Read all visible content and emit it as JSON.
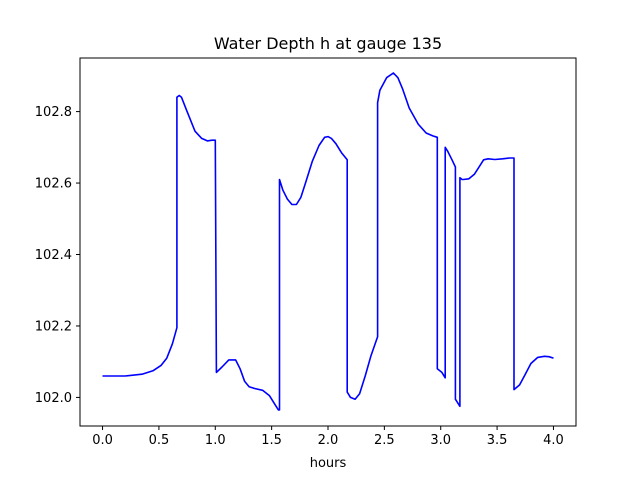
{
  "chart_data": {
    "type": "line",
    "title": "Water Depth h at gauge 135",
    "xlabel": "hours",
    "ylabel": "",
    "xlim": [
      -0.2,
      4.2
    ],
    "ylim": [
      101.92,
      102.95
    ],
    "xticks": [
      0.0,
      0.5,
      1.0,
      1.5,
      2.0,
      2.5,
      3.0,
      3.5,
      4.0
    ],
    "xtick_labels": [
      "0.0",
      "0.5",
      "1.0",
      "1.5",
      "2.0",
      "2.5",
      "3.0",
      "3.5",
      "4.0"
    ],
    "yticks": [
      102.0,
      102.2,
      102.4,
      102.6,
      102.8
    ],
    "ytick_labels": [
      "102.0",
      "102.2",
      "102.4",
      "102.6",
      "102.8"
    ],
    "grid": false,
    "color": "#0000ff",
    "series": [
      {
        "x": [
          0.0,
          0.2,
          0.35,
          0.45,
          0.52,
          0.57,
          0.62,
          0.66,
          0.66,
          0.68,
          0.7,
          0.75,
          0.82,
          0.88,
          0.93,
          0.97,
          1.0,
          1.01,
          1.01,
          1.06,
          1.12,
          1.18,
          1.22,
          1.26,
          1.3,
          1.35,
          1.42,
          1.48,
          1.53,
          1.56,
          1.57,
          1.57,
          1.6,
          1.64,
          1.68,
          1.72,
          1.76,
          1.8,
          1.86,
          1.92,
          1.97,
          2.0,
          2.03,
          2.07,
          2.12,
          2.17,
          2.17,
          2.2,
          2.24,
          2.28,
          2.33,
          2.38,
          2.44,
          2.44,
          2.46,
          2.52,
          2.58,
          2.62,
          2.66,
          2.72,
          2.8,
          2.87,
          2.93,
          2.97,
          2.97,
          3.01,
          3.04,
          3.04,
          3.06,
          3.1,
          3.13,
          3.13,
          3.17,
          3.17,
          3.19,
          3.2,
          3.25,
          3.3,
          3.35,
          3.38,
          3.42,
          3.48,
          3.55,
          3.61,
          3.65,
          3.65,
          3.7,
          3.75,
          3.8,
          3.86,
          3.92,
          3.96,
          4.0
        ],
        "y": [
          102.06,
          102.06,
          102.065,
          102.075,
          102.09,
          102.11,
          102.15,
          102.195,
          102.84,
          102.845,
          102.84,
          102.8,
          102.745,
          102.725,
          102.718,
          102.72,
          102.72,
          102.07,
          102.07,
          102.085,
          102.105,
          102.105,
          102.08,
          102.045,
          102.03,
          102.025,
          102.02,
          102.005,
          101.98,
          101.965,
          101.965,
          102.61,
          102.58,
          102.555,
          102.54,
          102.54,
          102.56,
          102.6,
          102.66,
          102.705,
          102.728,
          102.73,
          102.725,
          102.71,
          102.685,
          102.665,
          102.015,
          102.0,
          101.995,
          102.01,
          102.06,
          102.115,
          102.17,
          102.825,
          102.86,
          102.895,
          102.908,
          102.895,
          102.865,
          102.81,
          102.765,
          102.74,
          102.732,
          102.728,
          102.08,
          102.07,
          102.055,
          102.7,
          102.69,
          102.665,
          102.645,
          101.995,
          101.975,
          102.615,
          102.61,
          102.61,
          102.612,
          102.625,
          102.65,
          102.665,
          102.668,
          102.666,
          102.668,
          102.67,
          102.67,
          102.022,
          102.035,
          102.065,
          102.095,
          102.112,
          102.115,
          102.114,
          102.11
        ]
      }
    ]
  }
}
